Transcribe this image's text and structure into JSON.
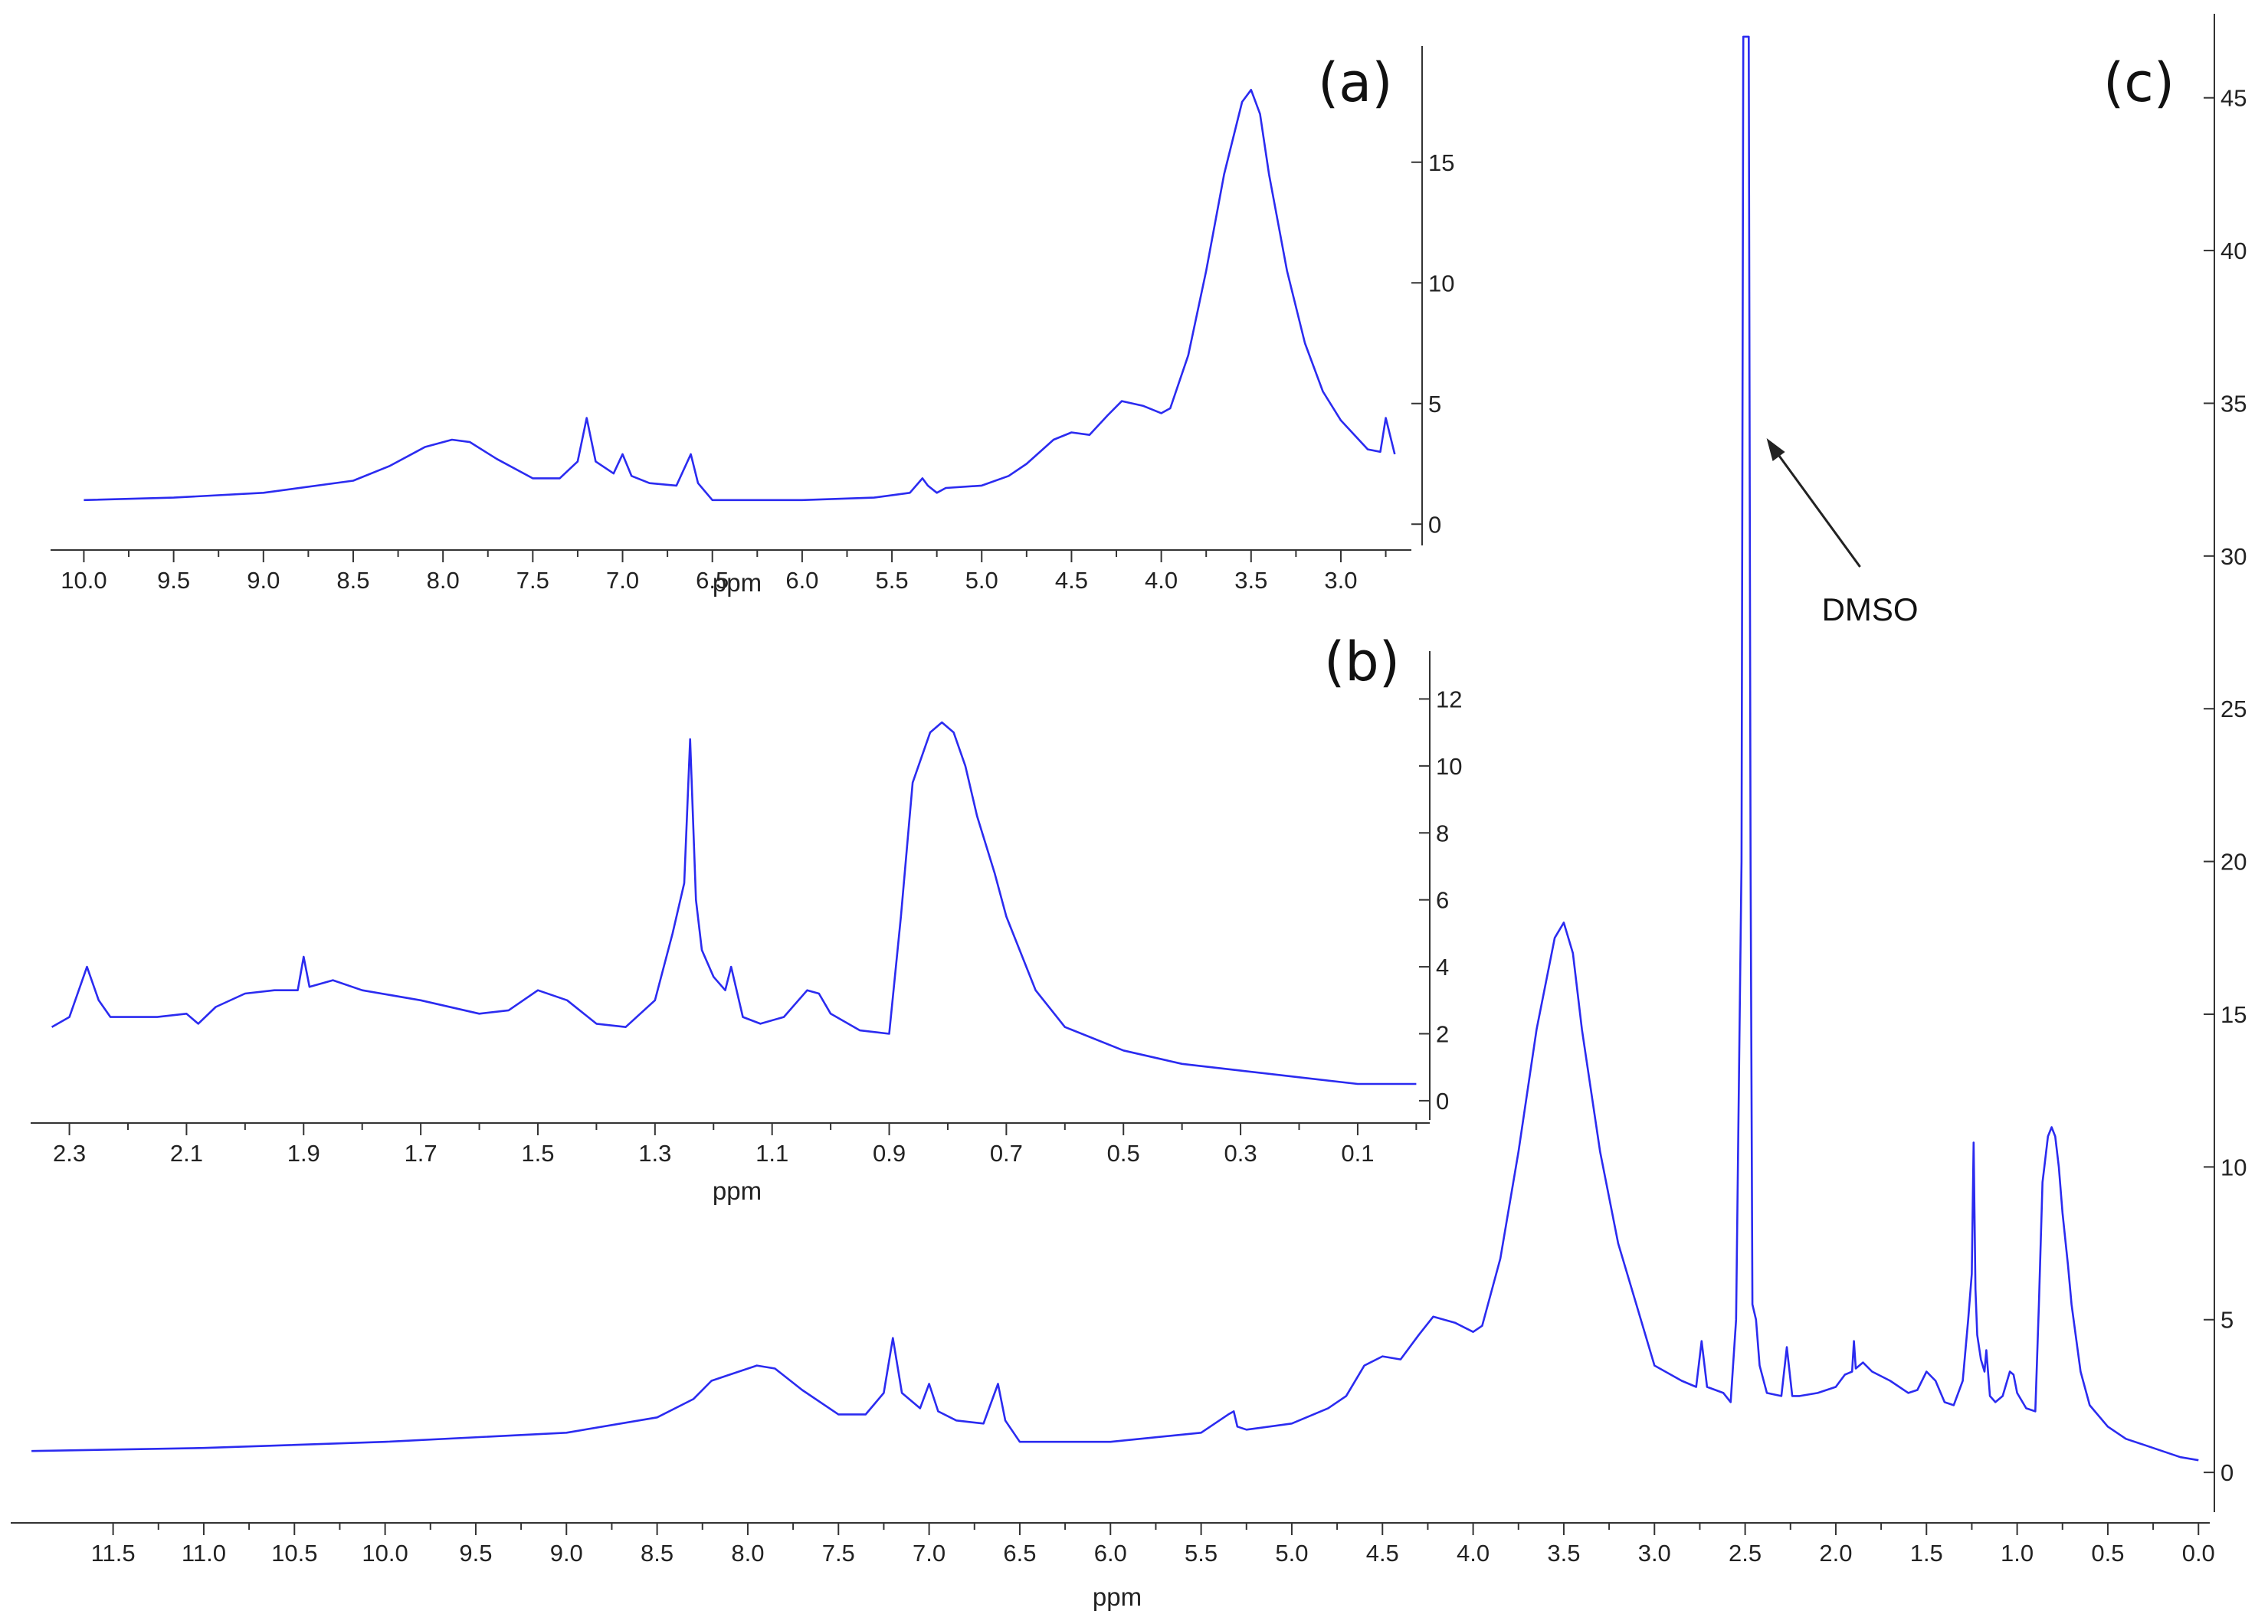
{
  "chart_data": [
    {
      "type": "line",
      "panel_label": "(a)",
      "xlabel": "ppm",
      "xlim": [
        10.1,
        2.65
      ],
      "ylim": [
        -0.5,
        19.5
      ],
      "x_ticks": [
        "10.0",
        "9.5",
        "9.0",
        "8.5",
        "8.0",
        "7.5",
        "7.0",
        "6.5",
        "6.0",
        "5.5",
        "5.0",
        "4.5",
        "4.0",
        "3.5",
        "3.0"
      ],
      "y_ticks": [
        "15",
        "10",
        "5",
        "0"
      ],
      "color": "#2b2bf0",
      "series": [
        {
          "x": [
            10.0,
            9.5,
            9.0,
            8.5,
            8.3,
            8.15,
            8.1,
            7.95,
            7.85,
            7.7,
            7.5,
            7.35,
            7.25,
            7.2,
            7.15,
            7.05,
            7.0,
            6.95,
            6.85,
            6.7,
            6.62,
            6.58,
            6.5,
            6.3,
            6.0,
            5.6,
            5.4,
            5.33,
            5.3,
            5.25,
            5.2,
            5.0,
            4.85,
            4.75,
            4.6,
            4.5,
            4.4,
            4.3,
            4.22,
            4.1,
            4.0,
            3.95,
            3.85,
            3.75,
            3.65,
            3.55,
            3.5,
            3.45,
            3.4,
            3.3,
            3.2,
            3.1,
            3.0,
            2.85,
            2.78,
            2.75,
            2.7
          ],
          "y": [
            1.0,
            1.1,
            1.3,
            1.8,
            2.4,
            3.0,
            3.2,
            3.5,
            3.4,
            2.7,
            1.9,
            1.9,
            2.6,
            4.4,
            2.6,
            2.1,
            2.9,
            2.0,
            1.7,
            1.6,
            2.9,
            1.7,
            1.0,
            1.0,
            1.0,
            1.1,
            1.3,
            1.9,
            1.6,
            1.3,
            1.5,
            1.6,
            2.0,
            2.5,
            3.5,
            3.8,
            3.7,
            4.5,
            5.1,
            4.9,
            4.6,
            4.8,
            7.0,
            10.5,
            14.5,
            17.5,
            18.0,
            17.0,
            14.5,
            10.5,
            7.5,
            5.5,
            4.3,
            3.1,
            3.0,
            4.4,
            2.9
          ]
        }
      ]
    },
    {
      "type": "line",
      "panel_label": "(b)",
      "xlabel": "ppm",
      "xlim": [
        2.34,
        -0.01
      ],
      "ylim": [
        -0.3,
        13.2
      ],
      "x_ticks": [
        "2.3",
        "2.1",
        "1.9",
        "1.7",
        "1.5",
        "1.3",
        "1.1",
        "0.9",
        "0.7",
        "0.5",
        "0.3",
        "0.1"
      ],
      "y_ticks": [
        "12",
        "10",
        "8",
        "6",
        "4",
        "2",
        "0"
      ],
      "color": "#2b2bf0",
      "series": [
        {
          "x": [
            2.33,
            2.3,
            2.27,
            2.25,
            2.23,
            2.2,
            2.15,
            2.1,
            2.08,
            2.05,
            2.0,
            1.95,
            1.91,
            1.9,
            1.89,
            1.85,
            1.8,
            1.7,
            1.6,
            1.55,
            1.5,
            1.45,
            1.4,
            1.35,
            1.3,
            1.27,
            1.25,
            1.24,
            1.23,
            1.22,
            1.2,
            1.18,
            1.17,
            1.15,
            1.12,
            1.08,
            1.04,
            1.02,
            1.0,
            0.95,
            0.9,
            0.88,
            0.86,
            0.85,
            0.83,
            0.81,
            0.79,
            0.77,
            0.75,
            0.72,
            0.7,
            0.65,
            0.6,
            0.5,
            0.4,
            0.3,
            0.2,
            0.1,
            0.0
          ],
          "y": [
            2.2,
            2.5,
            4.0,
            3.0,
            2.5,
            2.5,
            2.5,
            2.6,
            2.3,
            2.8,
            3.2,
            3.3,
            3.3,
            4.3,
            3.4,
            3.6,
            3.3,
            3.0,
            2.6,
            2.7,
            3.3,
            3.0,
            2.3,
            2.2,
            3.0,
            5.0,
            6.5,
            10.8,
            6.0,
            4.5,
            3.7,
            3.3,
            4.0,
            2.5,
            2.3,
            2.5,
            3.3,
            3.2,
            2.6,
            2.1,
            2.0,
            5.5,
            9.5,
            10.0,
            11.0,
            11.3,
            11.0,
            10.0,
            8.5,
            6.8,
            5.5,
            3.3,
            2.2,
            1.5,
            1.1,
            0.9,
            0.7,
            0.5,
            0.5
          ]
        }
      ]
    },
    {
      "type": "line",
      "panel_label": "(c)",
      "xlabel": "ppm",
      "xlim": [
        11.98,
        -0.02
      ],
      "ylim": [
        -1.0,
        47.5
      ],
      "x_ticks": [
        "11.5",
        "11.0",
        "10.5",
        "10.0",
        "9.5",
        "9.0",
        "8.5",
        "8.0",
        "7.5",
        "7.0",
        "6.5",
        "6.0",
        "5.5",
        "5.0",
        "4.5",
        "4.0",
        "3.5",
        "3.0",
        "2.5",
        "2.0",
        "1.5",
        "1.0",
        "0.5",
        "0.0"
      ],
      "y_ticks": [
        "45",
        "40",
        "35",
        "30",
        "25",
        "20",
        "15",
        "10",
        "5",
        "0"
      ],
      "color": "#2b2bf0",
      "annotations": [
        {
          "text": "DMSO",
          "x": 2.5
        }
      ],
      "series": [
        {
          "x": [
            11.95,
            11.0,
            10.0,
            9.0,
            8.5,
            8.3,
            8.2,
            8.1,
            7.95,
            7.85,
            7.7,
            7.5,
            7.35,
            7.25,
            7.2,
            7.15,
            7.05,
            7.0,
            6.95,
            6.85,
            6.7,
            6.62,
            6.58,
            6.5,
            6.3,
            6.0,
            5.5,
            5.35,
            5.32,
            5.3,
            5.25,
            5.0,
            4.8,
            4.7,
            4.6,
            4.5,
            4.4,
            4.3,
            4.22,
            4.1,
            4.0,
            3.95,
            3.85,
            3.75,
            3.65,
            3.55,
            3.5,
            3.45,
            3.4,
            3.3,
            3.2,
            3.1,
            3.0,
            2.85,
            2.77,
            2.74,
            2.71,
            2.62,
            2.58,
            2.55,
            2.52,
            2.51,
            2.5,
            2.49,
            2.48,
            2.47,
            2.46,
            2.44,
            2.42,
            2.38,
            2.3,
            2.27,
            2.24,
            2.2,
            2.1,
            2.0,
            1.95,
            1.91,
            1.9,
            1.89,
            1.85,
            1.8,
            1.7,
            1.6,
            1.55,
            1.5,
            1.45,
            1.4,
            1.35,
            1.3,
            1.27,
            1.25,
            1.24,
            1.23,
            1.22,
            1.2,
            1.18,
            1.17,
            1.15,
            1.12,
            1.08,
            1.04,
            1.02,
            1.0,
            0.95,
            0.9,
            0.88,
            0.86,
            0.85,
            0.83,
            0.81,
            0.79,
            0.77,
            0.75,
            0.72,
            0.7,
            0.65,
            0.6,
            0.5,
            0.4,
            0.3,
            0.2,
            0.1,
            0.0
          ],
          "y": [
            0.7,
            0.8,
            1.0,
            1.3,
            1.8,
            2.4,
            3.0,
            3.2,
            3.5,
            3.4,
            2.7,
            1.9,
            1.9,
            2.6,
            4.4,
            2.6,
            2.1,
            2.9,
            2.0,
            1.7,
            1.6,
            2.9,
            1.7,
            1.0,
            1.0,
            1.0,
            1.3,
            1.9,
            2.0,
            1.5,
            1.4,
            1.6,
            2.1,
            2.5,
            3.5,
            3.8,
            3.7,
            4.5,
            5.1,
            4.9,
            4.6,
            4.8,
            7.0,
            10.5,
            14.5,
            17.5,
            18.0,
            17.0,
            14.5,
            10.5,
            7.5,
            5.5,
            3.5,
            3.0,
            2.8,
            4.3,
            2.8,
            2.6,
            2.3,
            5.0,
            20.0,
            47.0,
            47.0,
            47.0,
            47.0,
            20.0,
            5.5,
            5.0,
            3.5,
            2.6,
            2.5,
            4.1,
            2.5,
            2.5,
            2.6,
            2.8,
            3.2,
            3.3,
            4.3,
            3.4,
            3.6,
            3.3,
            3.0,
            2.6,
            2.7,
            3.3,
            3.0,
            2.3,
            2.2,
            3.0,
            5.0,
            6.5,
            10.8,
            6.0,
            4.5,
            3.7,
            3.3,
            4.0,
            2.5,
            2.3,
            2.5,
            3.3,
            3.2,
            2.6,
            2.1,
            2.0,
            5.5,
            9.5,
            10.0,
            11.0,
            11.3,
            11.0,
            10.0,
            8.5,
            6.8,
            5.5,
            3.3,
            2.2,
            1.5,
            1.1,
            0.9,
            0.7,
            0.5,
            0.4
          ]
        }
      ]
    }
  ]
}
